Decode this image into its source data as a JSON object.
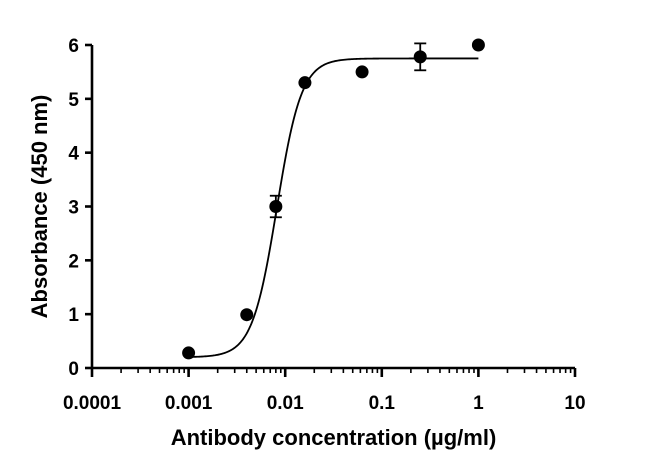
{
  "chart_data": {
    "type": "scatter",
    "title": "",
    "xlabel": "Antibody concentration (µg/ml)",
    "ylabel": "Absorbance (450 nm)",
    "xscale": "log",
    "xlim": [
      0.0001,
      10
    ],
    "ylim": [
      0,
      6
    ],
    "x_ticks": [
      0.0001,
      0.001,
      0.01,
      0.1,
      1,
      10
    ],
    "x_tick_labels": [
      "0.0001",
      "0.001",
      "0.01",
      "0.1",
      "1",
      "10"
    ],
    "y_ticks": [
      0,
      1,
      2,
      3,
      4,
      5,
      6
    ],
    "y_tick_labels": [
      "0",
      "1",
      "2",
      "3",
      "4",
      "5",
      "6"
    ],
    "grid": false,
    "legend": "none",
    "series": [
      {
        "points": [
          {
            "x": 0.001,
            "y": 0.28,
            "err": 0
          },
          {
            "x": 0.004,
            "y": 0.99,
            "err": 0
          },
          {
            "x": 0.008,
            "y": 3.0,
            "err": 0.2
          },
          {
            "x": 0.016,
            "y": 5.3,
            "err": 0
          },
          {
            "x": 0.0625,
            "y": 5.5,
            "err": 0
          },
          {
            "x": 0.25,
            "y": 5.78,
            "err": 0.25
          },
          {
            "x": 1,
            "y": 6.0,
            "err": 0
          }
        ]
      }
    ],
    "fit": {
      "model": "four-parameter logistic",
      "bottom": 0.2,
      "top": 5.75,
      "ec50": 0.0082,
      "hill": 3.4,
      "x_range": [
        0.001,
        1
      ]
    }
  }
}
